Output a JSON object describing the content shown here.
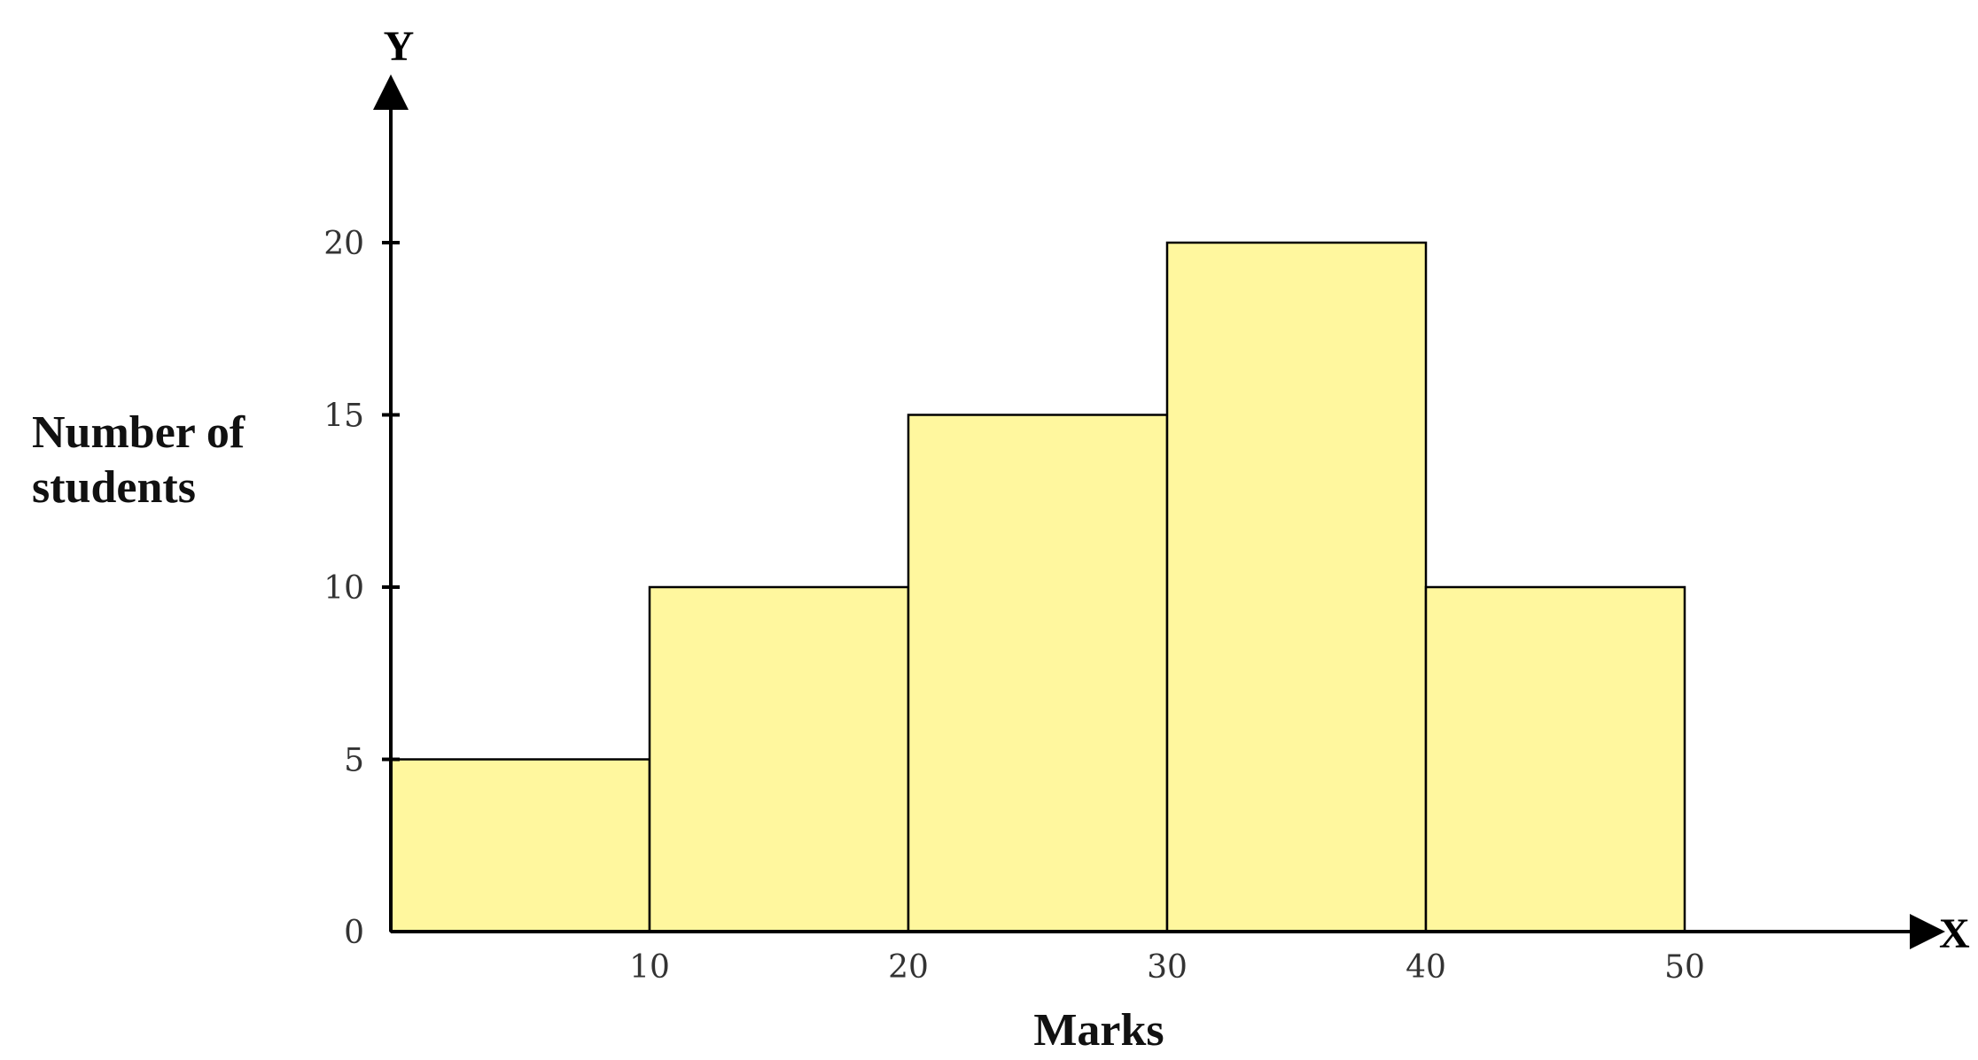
{
  "chart_data": {
    "type": "bar",
    "histogram": true,
    "bins": [
      {
        "from": 0,
        "to": 10,
        "value": 5
      },
      {
        "from": 10,
        "to": 20,
        "value": 10
      },
      {
        "from": 20,
        "to": 30,
        "value": 15
      },
      {
        "from": 30,
        "to": 40,
        "value": 20
      },
      {
        "from": 40,
        "to": 50,
        "value": 10
      }
    ],
    "values": [
      5,
      10,
      15,
      20,
      10
    ],
    "xlabel": "Marks",
    "ylabel_lines": [
      "Number of",
      "students"
    ],
    "x_axis_letter": "X",
    "y_axis_letter": "Y",
    "x_ticks": [
      "10",
      "20",
      "30",
      "40",
      "50"
    ],
    "y_ticks": [
      "0",
      "5",
      "10",
      "15",
      "20"
    ],
    "x_tick_values": [
      10,
      20,
      30,
      40,
      50
    ],
    "y_tick_values": [
      0,
      5,
      10,
      15,
      20
    ],
    "xlim": [
      0,
      60
    ],
    "ylim": [
      0,
      25
    ],
    "grid": false,
    "legend": "none",
    "colors": {
      "bar_fill": "#fff79e",
      "bar_stroke": "#000000",
      "axis": "#000000"
    }
  }
}
